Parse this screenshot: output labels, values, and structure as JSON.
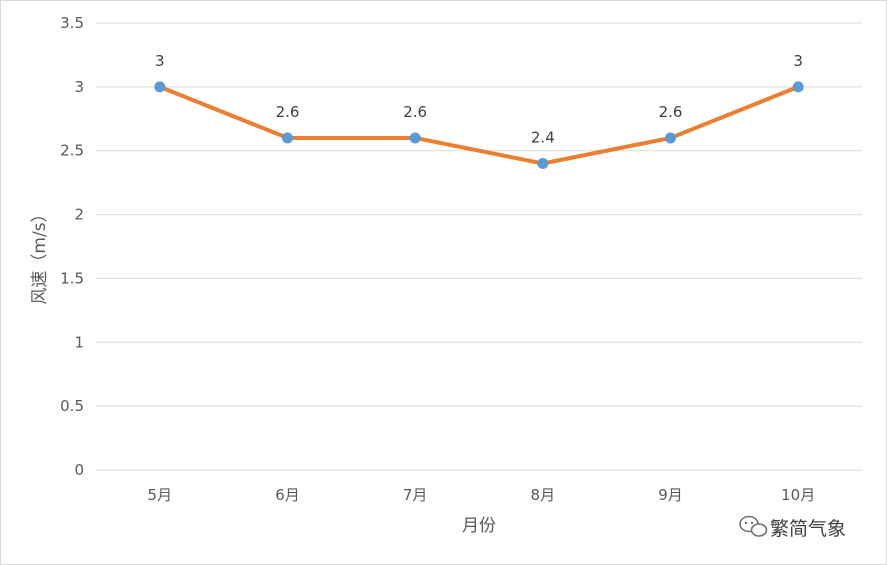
{
  "chart_data": {
    "type": "line",
    "categories": [
      "5月",
      "6月",
      "7月",
      "8月",
      "9月",
      "10月"
    ],
    "values": [
      3,
      2.6,
      2.6,
      2.4,
      2.6,
      3
    ],
    "data_labels": [
      "3",
      "2.6",
      "2.6",
      "2.4",
      "2.6",
      "3"
    ],
    "xlabel": "月份",
    "ylabel": "风速（m/s）",
    "ylim": [
      0,
      3.5
    ],
    "yticks": [
      "0",
      "0.5",
      "1",
      "1.5",
      "2",
      "2.5",
      "3",
      "3.5"
    ],
    "grid": true,
    "legend": "none",
    "colors": {
      "line": "#ED7D31",
      "marker": "#5B9BD5"
    }
  },
  "watermark": {
    "text": "繁简气象",
    "icon": "wechat-icon"
  }
}
